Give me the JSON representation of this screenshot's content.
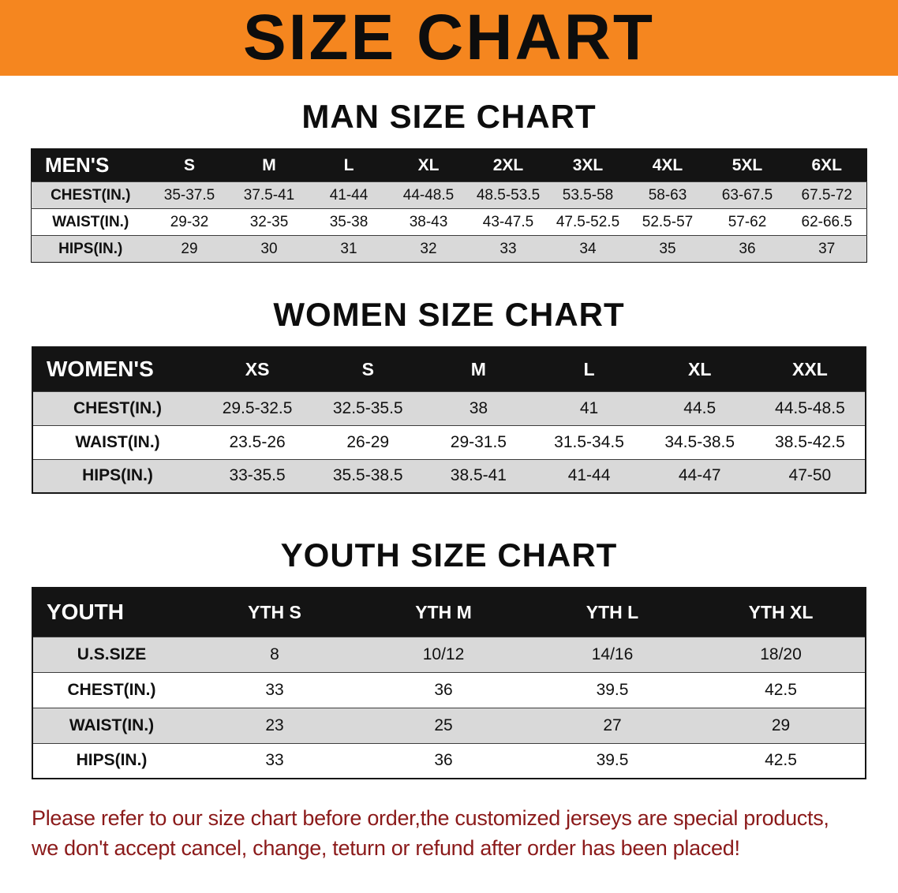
{
  "banner": {
    "title": "SIZE CHART"
  },
  "sections": [
    {
      "id": "men",
      "title": "MAN SIZE CHART",
      "corner_label": "MEN'S",
      "columns": [
        "S",
        "M",
        "L",
        "XL",
        "2XL",
        "3XL",
        "4XL",
        "5XL",
        "6XL"
      ],
      "rows": [
        {
          "label": "CHEST(IN.)",
          "values": [
            "35-37.5",
            "37.5-41",
            "41-44",
            "44-48.5",
            "48.5-53.5",
            "53.5-58",
            "58-63",
            "63-67.5",
            "67.5-72"
          ]
        },
        {
          "label": "WAIST(IN.)",
          "values": [
            "29-32",
            "32-35",
            "35-38",
            "38-43",
            "43-47.5",
            "47.5-52.5",
            "52.5-57",
            "57-62",
            "62-66.5"
          ]
        },
        {
          "label": "HIPS(IN.)",
          "values": [
            "29",
            "30",
            "31",
            "32",
            "33",
            "34",
            "35",
            "36",
            "37"
          ]
        }
      ]
    },
    {
      "id": "women",
      "title": "WOMEN SIZE CHART",
      "corner_label": "WOMEN'S",
      "columns": [
        "XS",
        "S",
        "M",
        "L",
        "XL",
        "XXL"
      ],
      "rows": [
        {
          "label": "CHEST(IN.)",
          "values": [
            "29.5-32.5",
            "32.5-35.5",
            "38",
            "41",
            "44.5",
            "44.5-48.5"
          ]
        },
        {
          "label": "WAIST(IN.)",
          "values": [
            "23.5-26",
            "26-29",
            "29-31.5",
            "31.5-34.5",
            "34.5-38.5",
            "38.5-42.5"
          ]
        },
        {
          "label": "HIPS(IN.)",
          "values": [
            "33-35.5",
            "35.5-38.5",
            "38.5-41",
            "41-44",
            "44-47",
            "47-50"
          ]
        }
      ]
    },
    {
      "id": "youth",
      "title": "YOUTH SIZE CHART",
      "corner_label": "YOUTH",
      "columns": [
        "YTH S",
        "YTH M",
        "YTH L",
        "YTH XL"
      ],
      "rows": [
        {
          "label": "U.S.SIZE",
          "values": [
            "8",
            "10/12",
            "14/16",
            "18/20"
          ]
        },
        {
          "label": "CHEST(IN.)",
          "values": [
            "33",
            "36",
            "39.5",
            "42.5"
          ]
        },
        {
          "label": "WAIST(IN.)",
          "values": [
            "23",
            "25",
            "27",
            "29"
          ]
        },
        {
          "label": "HIPS(IN.)",
          "values": [
            "33",
            "36",
            "39.5",
            "42.5"
          ]
        }
      ]
    }
  ],
  "footer": {
    "line1": "Please refer to our size chart before order,the customized jerseys are special products,",
    "line2": "we don't accept cancel, change, teturn or refund after order has been placed!"
  },
  "colors": {
    "banner_bg": "#F5861F",
    "header_bg": "#141414",
    "stripe": "#D9D9D9",
    "note_text": "#8B1A1A"
  }
}
